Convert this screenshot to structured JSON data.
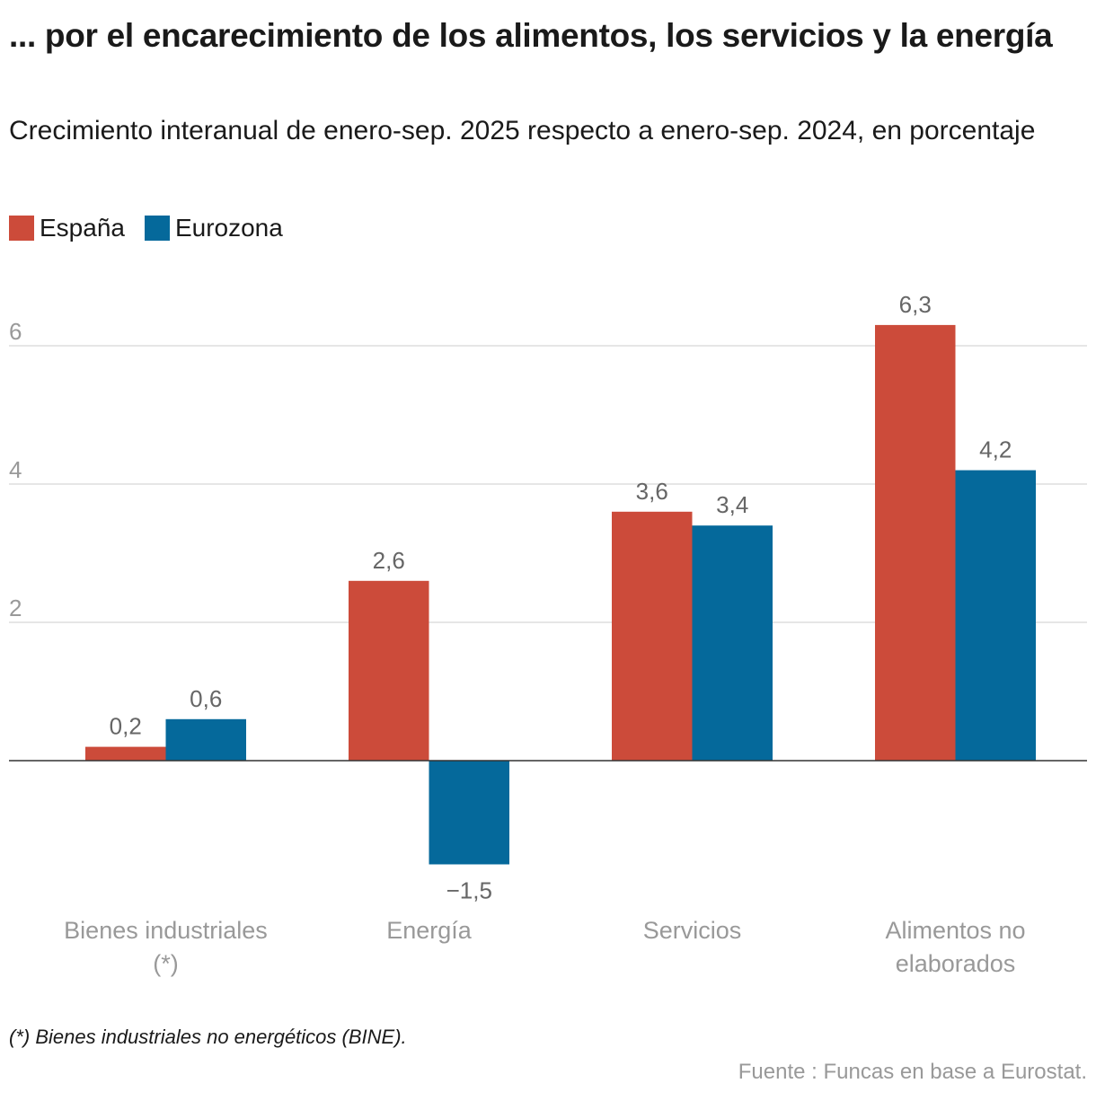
{
  "title": "... por el encarecimiento de los alimentos, los servicios y la energía",
  "subtitle": "Crecimiento interanual de enero-sep. 2025 respecto a enero-sep. 2024, en porcentaje",
  "note": "(*) Bienes industriales no energéticos (BINE).",
  "source": "Fuente : Funcas en base a Eurostat.",
  "chart_data": {
    "type": "bar",
    "categories": [
      [
        "Bienes industriales",
        "(*)"
      ],
      [
        "Energía"
      ],
      [
        "Servicios"
      ],
      [
        "Alimentos no",
        "elaborados"
      ]
    ],
    "series": [
      {
        "name": "España",
        "color": "#cc4b3a",
        "values": [
          0.2,
          2.6,
          3.6,
          6.3
        ],
        "labels": [
          "0,2",
          "2,6",
          "3,6",
          "6,3"
        ]
      },
      {
        "name": "Eurozona",
        "color": "#05699b",
        "values": [
          0.6,
          -1.5,
          3.4,
          4.2
        ],
        "labels": [
          "0,6",
          "−1,5",
          "3,4",
          "4,2"
        ]
      }
    ],
    "yticks": [
      2,
      4,
      6
    ],
    "ylim": [
      -2.3,
      7
    ],
    "grid": true,
    "legend": "top-left"
  }
}
